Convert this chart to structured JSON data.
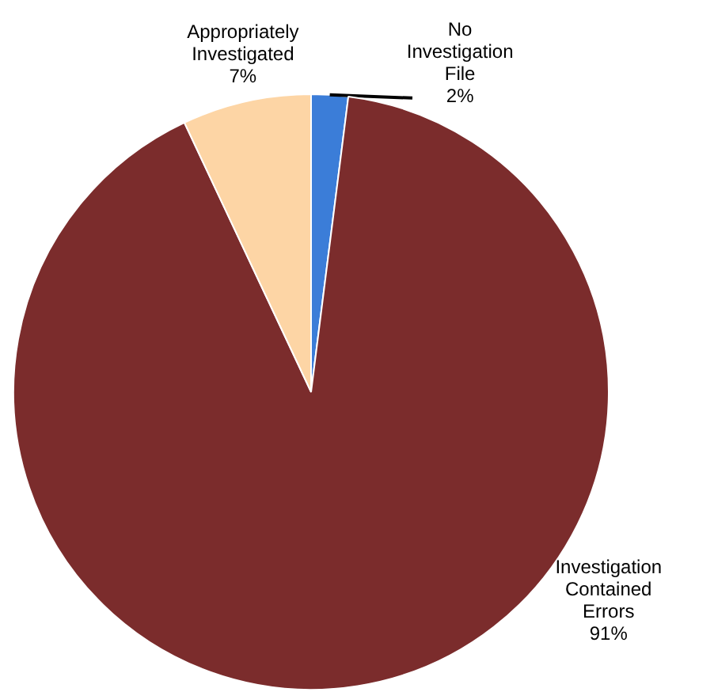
{
  "chart_data": {
    "type": "pie",
    "categories": [
      "No Investigation File",
      "Investigation Contained Errors",
      "Appropriately Investigated"
    ],
    "values": [
      2,
      91,
      7
    ],
    "colors": [
      "#3b7dd8",
      "#7b2c2c",
      "#fdd5a5"
    ],
    "value_labels": [
      "2%",
      "91%",
      "7%"
    ]
  }
}
